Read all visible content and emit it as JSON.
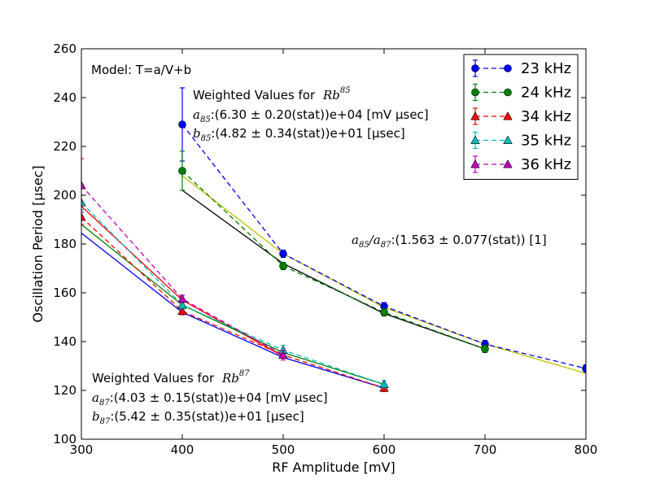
{
  "chart_data": {
    "type": "line",
    "xlabel": "RF Amplitude [mV]",
    "ylabel": "Oscillation Period [μsec]",
    "xlim": [
      300,
      800
    ],
    "ylim": [
      100,
      260
    ],
    "xticks": [
      "300",
      "400",
      "500",
      "600",
      "700",
      "800"
    ],
    "yticks": [
      "100",
      "120",
      "140",
      "160",
      "180",
      "200",
      "220",
      "240",
      "260"
    ],
    "legend_position": "top-right",
    "series": [
      {
        "name": "23 kHz",
        "color": "#0000ff",
        "marker": "circle",
        "x": [
          400,
          500,
          600,
          700,
          800
        ],
        "y": [
          229,
          176,
          154.5,
          139,
          129
        ],
        "yerr": [
          15,
          1.5,
          1.5,
          1.5,
          1.5
        ]
      },
      {
        "name": "24 kHz",
        "color": "#008000",
        "marker": "circle",
        "x": [
          400,
          500,
          600,
          700
        ],
        "y": [
          210,
          171,
          152,
          137
        ],
        "yerr": [
          8,
          1.5,
          1.5,
          1.5
        ]
      },
      {
        "name": "34 kHz",
        "color": "#ff0000",
        "marker": "triangle",
        "x": [
          300,
          400,
          500,
          600
        ],
        "y": [
          191,
          152.5,
          134.5,
          121
        ],
        "yerr": [
          3,
          1.5,
          2,
          1.5
        ]
      },
      {
        "name": "35 kHz",
        "color": "#00bfbf",
        "marker": "triangle",
        "x": [
          300,
          400,
          500,
          600
        ],
        "y": [
          197,
          155,
          136.5,
          122.5
        ],
        "yerr": [
          3,
          1.5,
          2,
          1.5
        ]
      },
      {
        "name": "36 kHz",
        "color": "#bf00bf",
        "marker": "triangle",
        "x": [
          300,
          400,
          500
        ],
        "y": [
          204,
          157.5,
          134.5
        ],
        "yerr": [
          11,
          1.5,
          2
        ]
      }
    ],
    "fits": [
      {
        "color": "#000000",
        "x": [
          400,
          500,
          600,
          700
        ],
        "y": [
          202,
          172,
          151.5,
          137
        ]
      },
      {
        "color": "#bfbf00",
        "x": [
          400,
          500,
          600,
          700,
          800
        ],
        "y": [
          208,
          176,
          154,
          139,
          127
        ]
      },
      {
        "color": "#0000ff",
        "x": [
          300,
          400,
          500,
          600
        ],
        "y": [
          184.5,
          152,
          133.5,
          121
        ]
      },
      {
        "color": "#ff0000",
        "x": [
          300,
          400,
          500
        ],
        "y": [
          195.5,
          157,
          134
        ]
      },
      {
        "color": "#008000",
        "x": [
          300,
          400,
          500,
          600
        ],
        "y": [
          188,
          155,
          135.5,
          122.5
        ]
      }
    ],
    "annotations": {
      "model": "Model: T=a/V+b",
      "rb85_title": "Weighted Values for",
      "rb85_symbol": "Rb",
      "rb85_mass": "85",
      "rb85_a_label": "a",
      "rb85_a_sub": "85",
      "rb85_a_value": ":(6.30 ± 0.20(stat))e+04 [mV μsec]",
      "rb85_b_label": "b",
      "rb85_b_sub": "85",
      "rb85_b_value": ":(4.82 ± 0.34(stat))e+01 [μsec]",
      "ratio_a1": "a",
      "ratio_a1_sub": "85",
      "ratio_slash": "/",
      "ratio_a2": "a",
      "ratio_a2_sub": "87",
      "ratio_value": ":(1.563 ± 0.077(stat)) [1]",
      "rb87_title": "Weighted Values for",
      "rb87_symbol": "Rb",
      "rb87_mass": "87",
      "rb87_a_label": "a",
      "rb87_a_sub": "87",
      "rb87_a_value": ":(4.03 ± 0.15(stat))e+04 [mV μsec]",
      "rb87_b_label": "b",
      "rb87_b_sub": "87",
      "rb87_b_value": ":(5.42 ± 0.35(stat))e+01 [μsec]"
    }
  }
}
